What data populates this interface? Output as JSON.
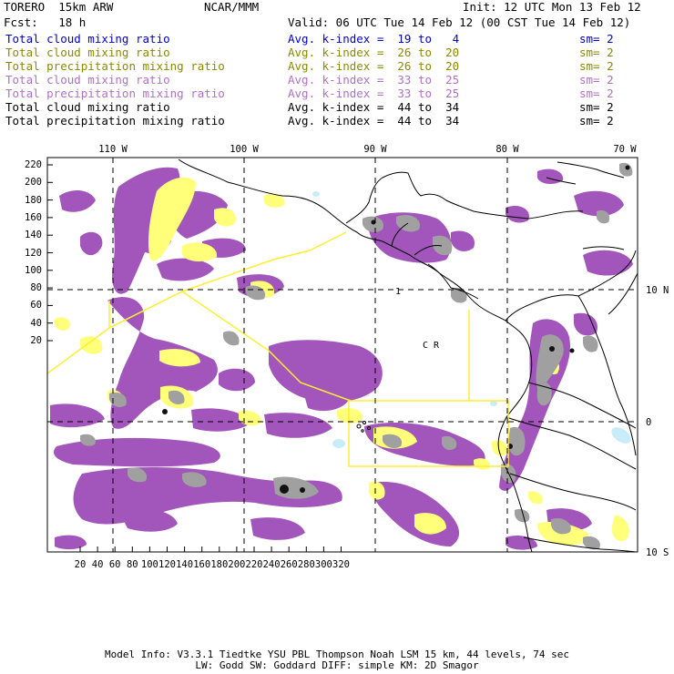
{
  "header": {
    "model_name": "TORERO  15km ARW",
    "center": "NCAR/MMM",
    "init": "Init: 12 UTC Mon 13 Feb 12",
    "fcst": "Fcst:   18 h",
    "valid": "Valid: 06 UTC Tue 14 Feb 12 (00 CST Tue 14 Feb 12)"
  },
  "legend": [
    {
      "name": "Total cloud mixing ratio",
      "kindex": "Avg. k-index =  19 to   4",
      "sm": "sm= 2",
      "color": "#0000cc"
    },
    {
      "name": "Total cloud mixing ratio",
      "kindex": "Avg. k-index =  26 to  20",
      "sm": "sm= 2",
      "color": "#8a8a00"
    },
    {
      "name": "Total precipitation mixing ratio",
      "kindex": "Avg. k-index =  26 to  20",
      "sm": "sm= 2",
      "color": "#8a8a00"
    },
    {
      "name": "Total cloud mixing ratio",
      "kindex": "Avg. k-index =  33 to  25",
      "sm": "sm= 2",
      "color": "#b070c8"
    },
    {
      "name": "Total precipitation mixing ratio",
      "kindex": "Avg. k-index =  33 to  25",
      "sm": "sm= 2",
      "color": "#b070c8"
    },
    {
      "name": "Total cloud mixing ratio",
      "kindex": "Avg. k-index =  44 to  34",
      "sm": "sm= 2",
      "color": "#000000"
    },
    {
      "name": "Total precipitation mixing ratio",
      "kindex": "Avg. k-index =  44 to  34",
      "sm": "sm= 2",
      "color": "#000000"
    }
  ],
  "axes": {
    "top_ticks": [
      "110 W",
      "100 W",
      "90 W",
      "80 W",
      "70 W"
    ],
    "right_ticks": [
      "10 N",
      "0",
      "10 S"
    ],
    "left_ticks": [
      "220",
      "200",
      "180",
      "160",
      "140",
      "120",
      "100",
      "80",
      "60",
      "40",
      "20"
    ],
    "bottom_ticks": [
      "20",
      "40",
      "60",
      "80",
      "100",
      "120",
      "140",
      "160",
      "180",
      "200",
      "220",
      "240",
      "260",
      "280",
      "300",
      "320"
    ]
  },
  "map_labels": {
    "label_1": "1",
    "label_cr": "C R"
  },
  "colors": {
    "purple": "#a256bb",
    "yellow": "#ffff7a",
    "gray": "#a0a0a0",
    "cyan": "#c8ecf8",
    "box": "#ffee33"
  },
  "footer": {
    "line1": "Model Info: V3.3.1   Tiedtke YSU PBL  Thompson    Noah LSM  15 km,   44 levels,   74 sec",
    "line2": "LW: Godd SW: Goddard DIFF: simple KM: 2D Smagor"
  }
}
